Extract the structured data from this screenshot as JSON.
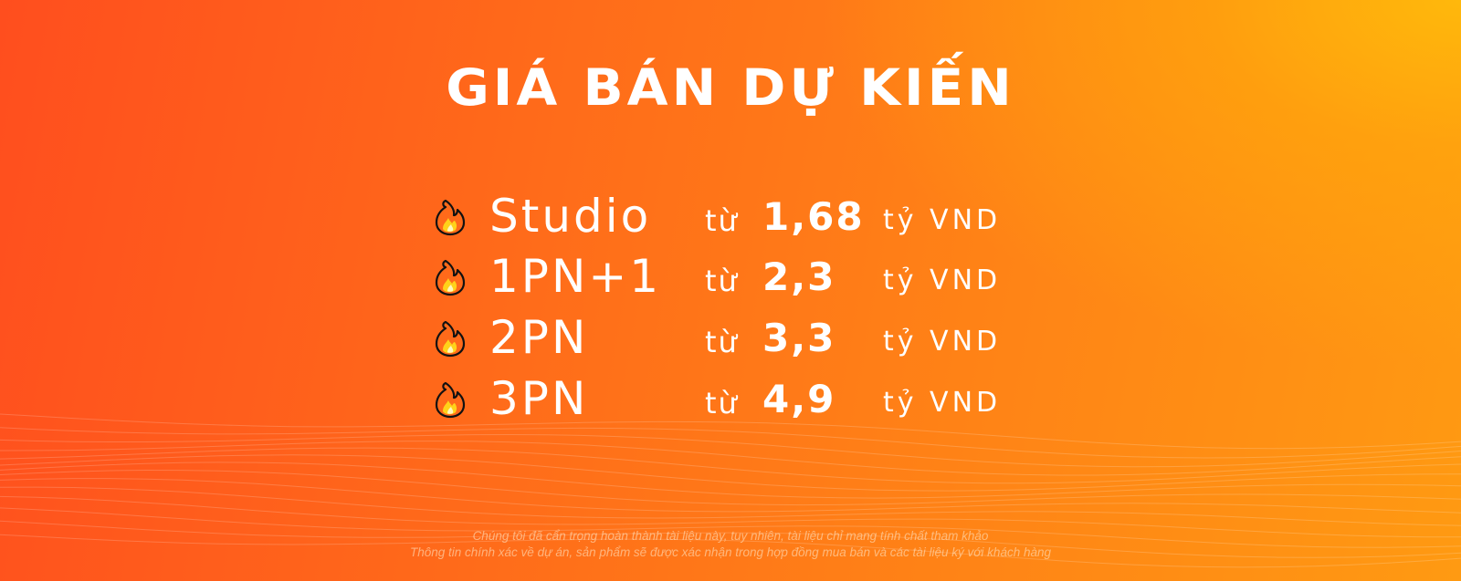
{
  "title": "GIÁ BÁN DỰ KIẾN",
  "prefix": "từ",
  "rows": [
    {
      "label": "Studio",
      "price": "1,68",
      "unit": "tỷ VND",
      "icon": "fire-icon"
    },
    {
      "label": "1PN+1",
      "price": "2,3",
      "unit": "tỷ VND",
      "icon": "fire-icon"
    },
    {
      "label": "2PN",
      "price": "3,3",
      "unit": "tỷ VND",
      "icon": "fire-icon"
    },
    {
      "label": "3PN",
      "price": "4,9",
      "unit": "tỷ VND",
      "icon": "fire-icon"
    }
  ],
  "disclaimer": [
    "Chúng tôi đã cẩn trọng hoàn thành tài liệu này, tuy nhiên, tài liệu chỉ mang tính chất tham khảo",
    "Thông tin chính xác về dự án, sản phẩm sẽ được xác nhận trong hợp đồng mua bán và các tài liệu ký với khách hàng"
  ],
  "colors": {
    "bg_left": "#ff4e1e",
    "bg_right": "#ffb80c",
    "text": "#ffffff"
  }
}
